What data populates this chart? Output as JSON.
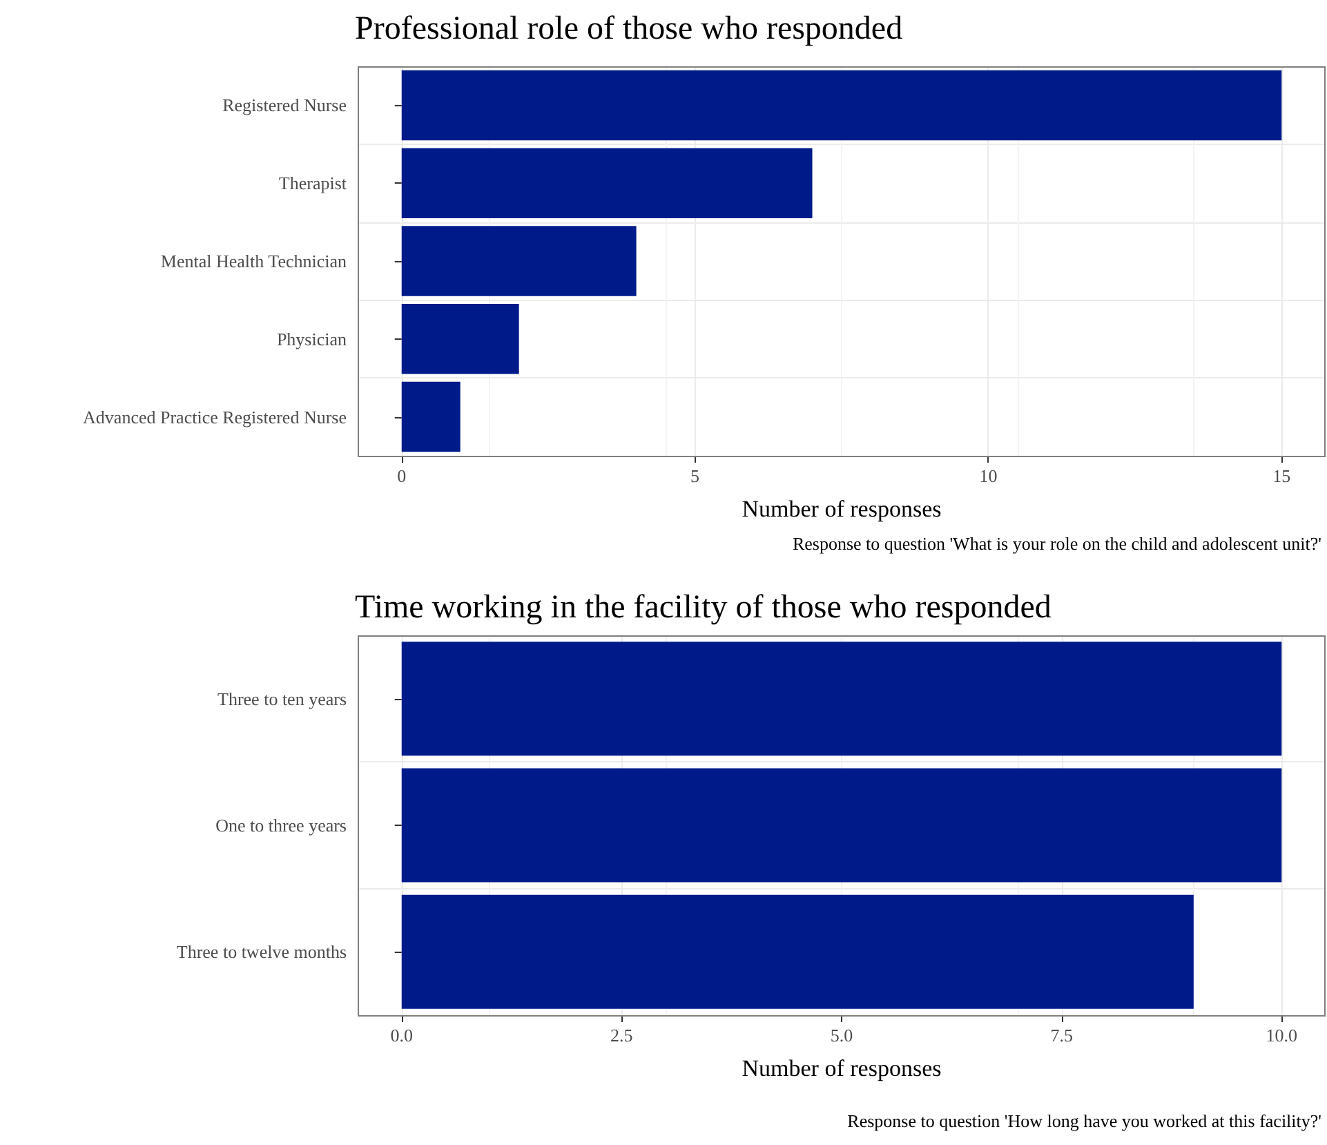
{
  "chart_data": [
    {
      "type": "bar",
      "orientation": "horizontal",
      "title": "Professional role of those who responded",
      "xlabel": "Number of responses",
      "categories": [
        "Registered Nurse",
        "Therapist",
        "Mental Health Technician",
        "Physician",
        "Advanced Practice Registered Nurse"
      ],
      "values": [
        15,
        7,
        4,
        2,
        1
      ],
      "color": "#001a8a",
      "xlim": [
        -0.75,
        15.75
      ],
      "xticks": [
        0,
        5,
        10,
        15
      ],
      "grid": true,
      "annotations": [
        "Response to question 'What is your role on the child and adolescent unit?'"
      ]
    },
    {
      "type": "bar",
      "orientation": "horizontal",
      "title": "Time working in the facility of those who responded",
      "xlabel": "Number of responses",
      "categories": [
        "Three to ten years",
        "One to three years",
        "Three to twelve months"
      ],
      "values": [
        10,
        10,
        9
      ],
      "color": "#001a8a",
      "xlim": [
        -0.5,
        10.5
      ],
      "xticks": [
        {
          "value": 0,
          "label": "0.0"
        },
        {
          "value": 2.5,
          "label": "2.5"
        },
        {
          "value": 5,
          "label": "5.0"
        },
        {
          "value": 7.5,
          "label": "7.5"
        },
        {
          "value": 10,
          "label": "10.0"
        }
      ],
      "grid": true,
      "annotations": [
        "Response to question 'How long have you worked at this facility?'"
      ]
    }
  ]
}
